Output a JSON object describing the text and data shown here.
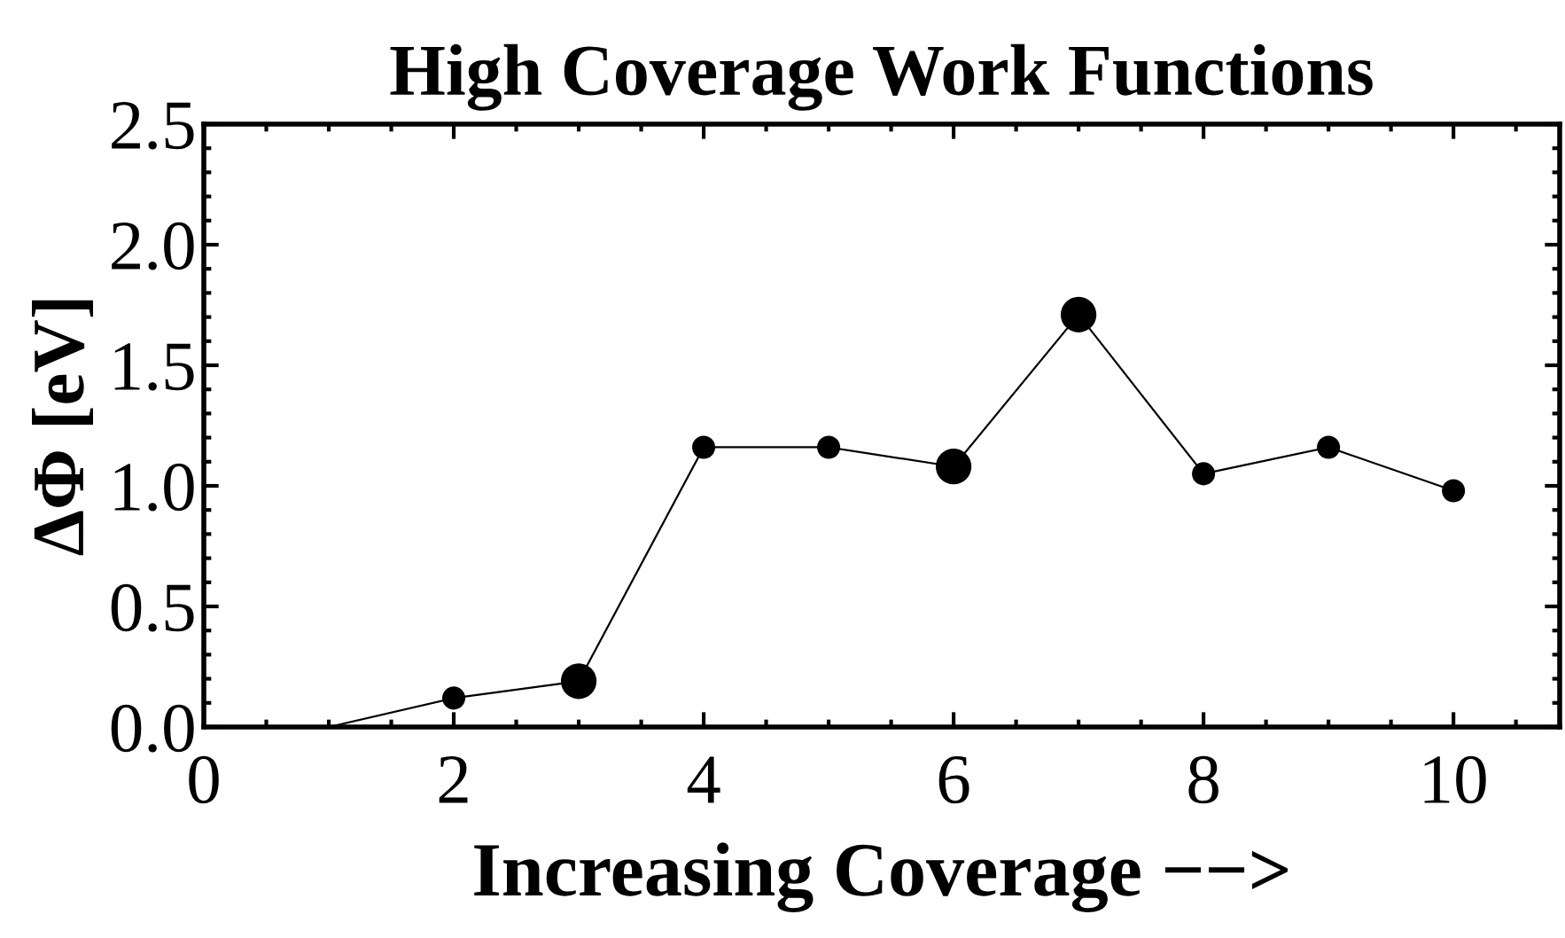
{
  "chart_data": {
    "type": "line",
    "title": "High Coverage Work Functions",
    "xlabel": "Increasing Coverage −−>",
    "ylabel": "ΔΦ [eV]",
    "series": [
      {
        "color": "#000000",
        "x": [
          1,
          2,
          3,
          4,
          5,
          6,
          7,
          8,
          9,
          10
        ],
        "values": [
          0,
          0.12,
          0.19,
          1.16,
          1.16,
          1.08,
          1.71,
          1.05,
          1.16,
          0.98
        ]
      },
      {
        "type": "bubble",
        "color": "#000000",
        "x": [
          2,
          3,
          4,
          5,
          6,
          7,
          8,
          9,
          10
        ],
        "values": [
          0.12,
          0.19,
          1.16,
          1.16,
          1.08,
          1.71,
          1.05,
          1.16,
          0.98
        ],
        "sizes": [
          0.42,
          1,
          0.42,
          0.42,
          1,
          1,
          0.42,
          0.42,
          0.42
        ]
      }
    ],
    "xlim": [
      0,
      10.85
    ],
    "xticks": [
      0,
      {
        "value": 0.5,
        "label": null
      },
      {
        "value": 1,
        "label": null
      },
      {
        "value": 1.5,
        "label": null
      },
      2,
      {
        "value": 2.5,
        "label": null
      },
      {
        "value": 3,
        "label": null
      },
      {
        "value": 3.5,
        "label": null
      },
      4,
      {
        "value": 4.5,
        "label": null
      },
      {
        "value": 5,
        "label": null
      },
      {
        "value": 5.5,
        "label": null
      },
      6,
      {
        "value": 6.5,
        "label": null
      },
      {
        "value": 7,
        "label": null
      },
      {
        "value": 7.5,
        "label": null
      },
      8,
      {
        "value": 8.5,
        "label": null
      },
      {
        "value": 9,
        "label": null
      },
      {
        "value": 9.5,
        "label": null
      },
      10,
      {
        "value": 10.5,
        "label": null
      }
    ],
    "ylim": [
      0,
      2.5
    ],
    "yticks": [
      {
        "value": 0,
        "label": "0.0"
      },
      {
        "value": 0.1,
        "label": null
      },
      {
        "value": 0.2,
        "label": null
      },
      {
        "value": 0.3,
        "label": null
      },
      {
        "value": 0.4,
        "label": null
      },
      0.5,
      {
        "value": 0.6,
        "label": null
      },
      {
        "value": 0.7,
        "label": null
      },
      {
        "value": 0.8,
        "label": null
      },
      {
        "value": 0.9,
        "label": null
      },
      {
        "value": 1,
        "label": "1.0"
      },
      {
        "value": 1.1,
        "label": null
      },
      {
        "value": 1.2,
        "label": null
      },
      {
        "value": 1.3,
        "label": null
      },
      {
        "value": 1.4,
        "label": null
      },
      1.5,
      {
        "value": 1.6,
        "label": null
      },
      {
        "value": 1.7,
        "label": null
      },
      {
        "value": 1.8,
        "label": null
      },
      {
        "value": 1.9,
        "label": null
      },
      {
        "value": 2,
        "label": "2.0"
      },
      {
        "value": 2.1,
        "label": null
      },
      {
        "value": 2.2,
        "label": null
      },
      {
        "value": 2.3,
        "label": null
      },
      {
        "value": 2.4,
        "label": null
      },
      2.5
    ]
  }
}
